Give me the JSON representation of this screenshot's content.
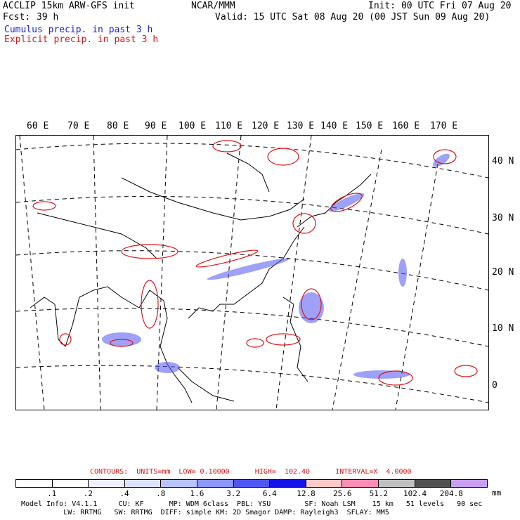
{
  "header": {
    "title_left": "ACCLIP 15km ARW-GFS init",
    "fcst_label": "Fcst:",
    "fcst_value": "39 h",
    "center": "NCAR/MMM",
    "init": "Init: 00 UTC Fri 07 Aug 20",
    "valid": "Valid: 15 UTC Sat 08 Aug 20 (00 JST Sun 09 Aug 20)",
    "legend_cumulus": "Cumulus precip. in past 3 h",
    "legend_explicit": "Explicit precip. in past 3 h"
  },
  "colors": {
    "cumulus": "#1c1cd6",
    "explicit": "#e01414"
  },
  "map": {
    "lon_labels": [
      "60 E",
      "70 E",
      "80 E",
      "90 E",
      "100 E",
      "110 E",
      "120 E",
      "130 E",
      "140 E",
      "150 E",
      "160 E",
      "170 E"
    ],
    "lat_labels": [
      "40 N",
      "30 N",
      "20 N",
      "10 N",
      "0"
    ]
  },
  "contours": {
    "text": "CONTOURS:  UNITS=mm  LOW= 0.10000      HIGH=  102.40      INTERVAL=X  4.0000"
  },
  "colorbar": {
    "labels": [
      ".1",
      ".2",
      ".4",
      ".8",
      "1.6",
      "3.2",
      "6.4",
      "12.8",
      "25.6",
      "51.2",
      "102.4",
      "204.8"
    ],
    "unit": "mm",
    "colors": [
      "#ffffff",
      "#ffffff",
      "#eef2ff",
      "#dde3ff",
      "#b8c2ff",
      "#8c96ff",
      "#4f55f0",
      "#1414e6",
      "#ffc8c8",
      "#ff8cb4",
      "#c0c0c0",
      "#505050",
      "#c8a0f0"
    ]
  },
  "footer": {
    "line1": "Model Info: V4.1.1     CU: KF      MP: WDM 6class  PBL: YSU        SF: Noah LSM    15 km   51 levels   90 sec",
    "line2": "          LW: RRTMG   SW: RRTMG  DIFF: simple KM: 2D Smagor DAMP: Rayleigh3  SFLAY: MM5"
  }
}
